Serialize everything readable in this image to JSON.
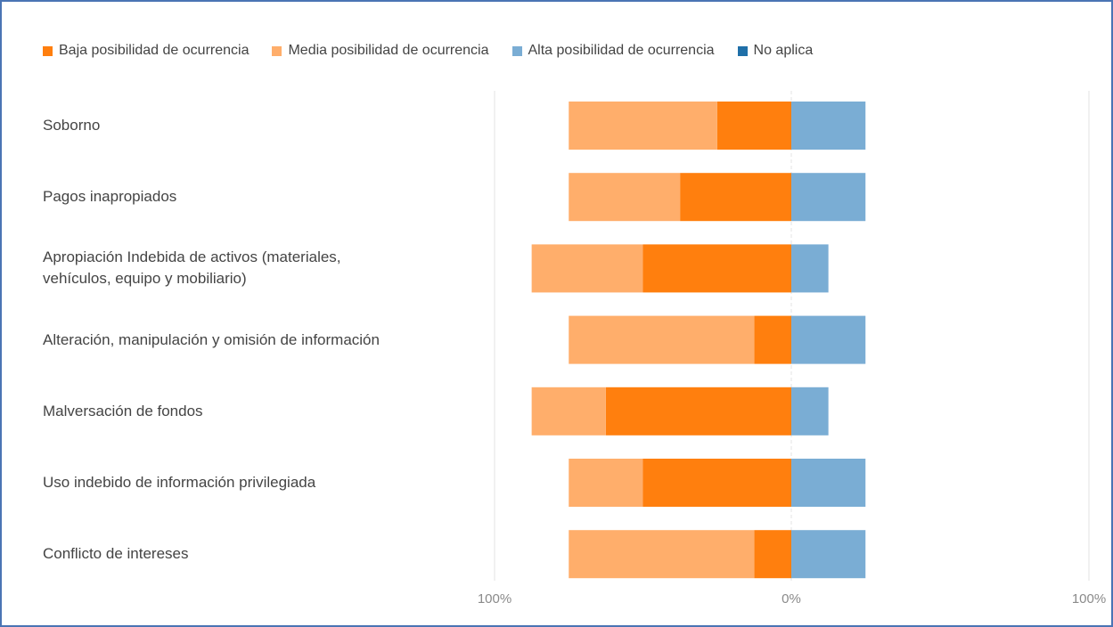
{
  "chart_data": {
    "type": "bar",
    "orientation": "horizontal",
    "stacking": "diverging",
    "categories": [
      "Soborno",
      "Pagos inapropiados",
      "Apropiación Indebida de activos (materiales, vehículos, equipo y mobiliario)",
      "Alteración, manipulación y omisión de información",
      "Malversación de fondos",
      "Uso indebido de información privilegiada",
      "Conflicto de intereses"
    ],
    "series": [
      {
        "name": "Baja posibilidad de ocurrencia",
        "color": "#ff7f0e",
        "side": "negative",
        "values": [
          25,
          37.5,
          50,
          12.5,
          62.5,
          50,
          12.5
        ]
      },
      {
        "name": "Media posibilidad de ocurrencia",
        "color": "#ffae6b",
        "side": "negative",
        "values": [
          50,
          37.5,
          37.5,
          62.5,
          25,
          25,
          62.5
        ]
      },
      {
        "name": "Alta posibilidad de ocurrencia",
        "color": "#7aadd4",
        "side": "positive",
        "values": [
          25,
          25,
          12.5,
          25,
          12.5,
          25,
          25
        ]
      },
      {
        "name": "No aplica",
        "color": "#1f6fa8",
        "side": "positive",
        "values": [
          0,
          0,
          0,
          0,
          0,
          0,
          0
        ]
      }
    ],
    "x_ticks": [
      "100%",
      "0%",
      "100%"
    ],
    "xlim": [
      -100,
      100
    ],
    "grid": true,
    "legend_position": "top"
  }
}
